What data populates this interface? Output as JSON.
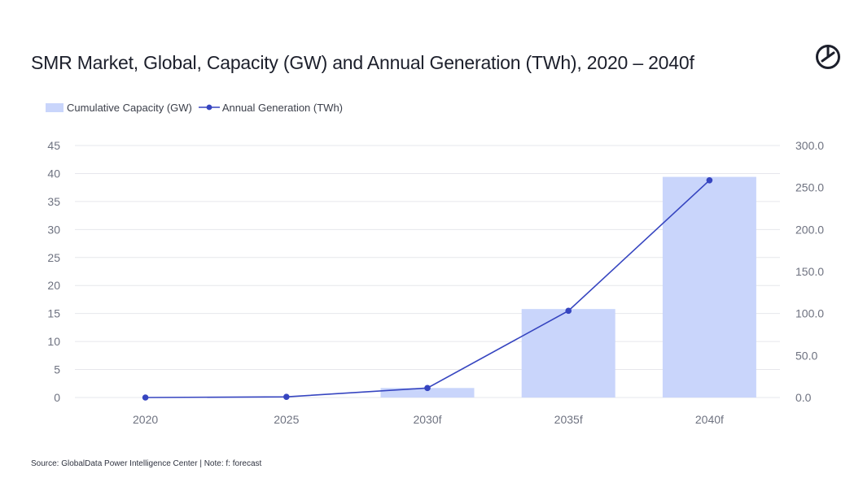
{
  "title": "SMR Market, Global, Capacity (GW) and Annual Generation (TWh), 2020 – 2040f",
  "source": "Source: GlobalData Power Intelligence Center | Note: f: forecast",
  "logo_icon": "globaldata-logo-icon",
  "colors": {
    "bar": "#c9d5fb",
    "line": "#3645c0",
    "grid": "#e6e7ec",
    "tick": "#6e7280"
  },
  "chart_data": {
    "type": "bar",
    "categories": [
      "2020",
      "2025",
      "2030f",
      "2035f",
      "2040f"
    ],
    "series": [
      {
        "name": "Cumulative Capacity (GW)",
        "type": "bar",
        "axis": "left",
        "values": [
          0,
          0,
          1.7,
          15.8,
          39.4
        ]
      },
      {
        "name": "Annual Generation (TWh)",
        "type": "line",
        "axis": "right",
        "values": [
          0.0,
          0.8,
          11.3,
          103.2,
          258.6
        ]
      }
    ],
    "left_axis": {
      "ylim": [
        0,
        45
      ],
      "ticks": [
        "0",
        "5",
        "10",
        "15",
        "20",
        "25",
        "30",
        "35",
        "40",
        "45"
      ]
    },
    "right_axis": {
      "ylim": [
        0,
        300
      ],
      "ticks": [
        "0.0",
        "50.0",
        "100.0",
        "150.0",
        "200.0",
        "250.0",
        "300.0"
      ]
    },
    "grid": true,
    "legend": "top-left"
  }
}
